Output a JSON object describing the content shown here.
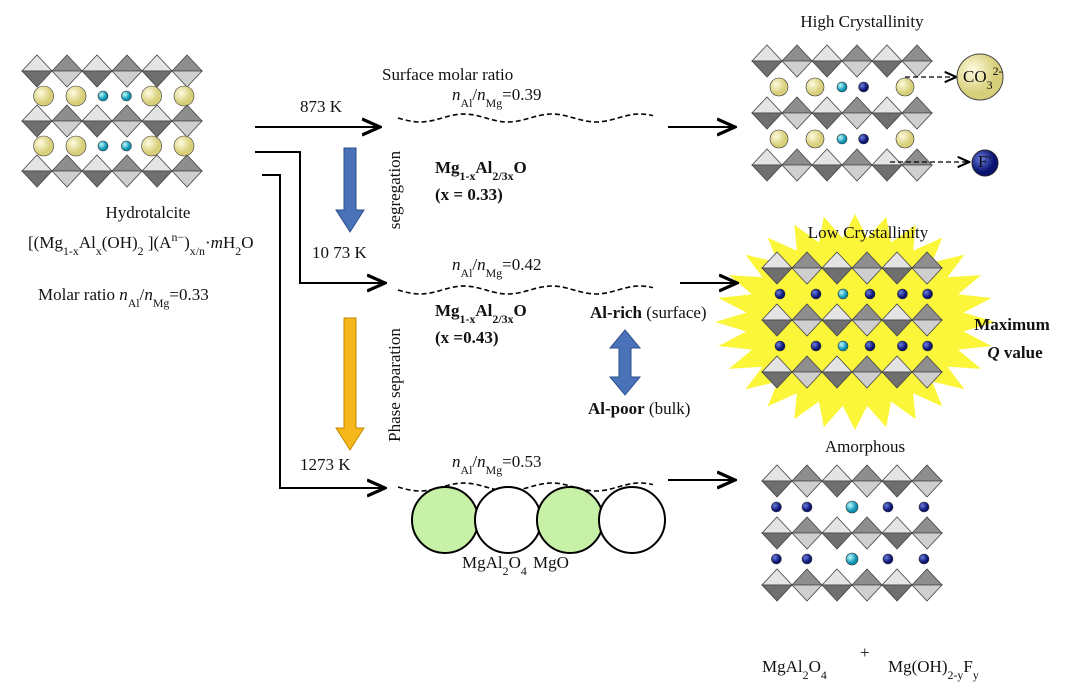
{
  "hydrotalcite": {
    "name": "Hydrotalcite",
    "formula": [
      "[(Mg",
      "1-x",
      "Al",
      "x",
      "(OH)",
      "2",
      " ](A",
      "n−",
      ")",
      "x/n",
      "·",
      "m",
      "H",
      "2",
      "O"
    ],
    "molar_ratio": [
      "Molar ratio ",
      "n",
      "Al",
      "/",
      "n",
      "Mg",
      "=0.33"
    ]
  },
  "temperatures": [
    "873 K",
    "10 73 K",
    "1273 K"
  ],
  "process_labels": {
    "segregation": "segregation",
    "phase_separation": "Phase separation"
  },
  "surface_label": "Surface molar ratio",
  "ratios": [
    [
      "n",
      "Al",
      "/",
      "n",
      "Mg",
      "=0.39"
    ],
    [
      "n",
      "Al",
      "/",
      "n",
      "Mg",
      "=0.42"
    ],
    [
      "n",
      "Al",
      "/",
      "n",
      "Mg",
      "=0.53"
    ]
  ],
  "oxides": [
    {
      "formula": [
        "Mg",
        "1-x",
        "Al",
        "2/3x",
        "O"
      ],
      "x": "(x = 0.33)"
    },
    {
      "formula": [
        "Mg",
        "1-x",
        "Al",
        "2/3x",
        "O"
      ],
      "x": "(x =0.43)"
    }
  ],
  "distribution": {
    "rich": [
      "Al-rich",
      " (surface)"
    ],
    "poor": [
      "Al-poor",
      " (bulk)"
    ]
  },
  "phases": [
    [
      "MgAl",
      "2",
      "O",
      "4"
    ],
    [
      "MgO"
    ]
  ],
  "states": [
    "High Crystallinity",
    "Low Crystallinity",
    "Amorphous"
  ],
  "ions": {
    "carbonate": [
      "CO",
      "3",
      "2-"
    ],
    "fluoride": [
      "F",
      "-"
    ]
  },
  "quality": {
    "line1": "Maximum",
    "line2": [
      "Q",
      " value"
    ]
  },
  "products": {
    "first": [
      "MgAl",
      "2",
      "O",
      "4"
    ],
    "plus": "+",
    "second": [
      "Mg(OH)",
      "2-y",
      "F",
      "y"
    ]
  }
}
